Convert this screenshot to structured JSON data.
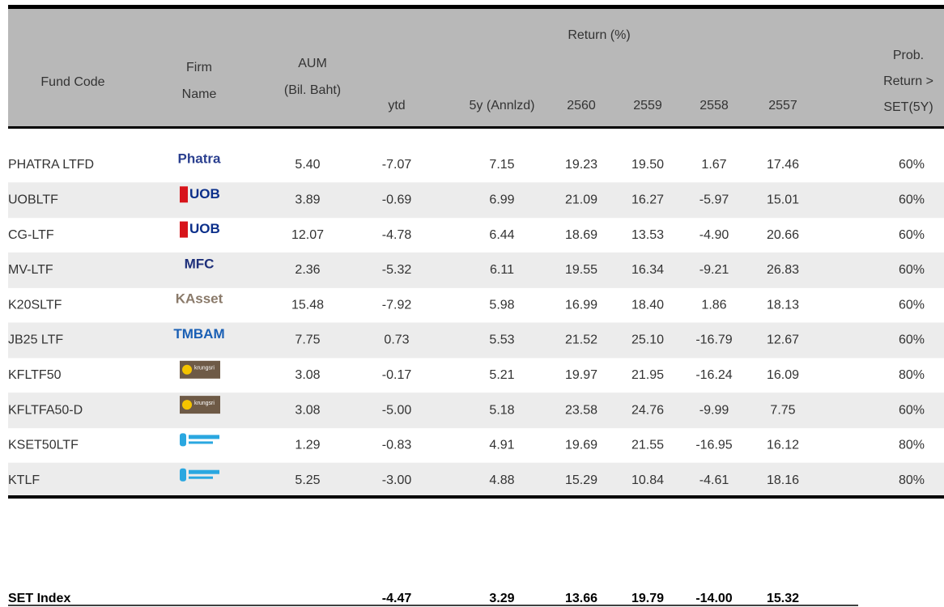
{
  "header": {
    "fund_code": "Fund Code",
    "firm": [
      "Firm",
      "Name"
    ],
    "aum": [
      "AUM",
      "(Bil. Baht)"
    ],
    "return_group": "Return (%)",
    "return_cols": [
      "ytd",
      "5y (Annlzd)",
      "2560",
      "2559",
      "2558",
      "2557"
    ],
    "prob": [
      "Prob.",
      "Return >",
      "SET(5Y)"
    ]
  },
  "rows": [
    {
      "code": "PHATRA LTFD",
      "firm": "Phatra",
      "firm_color": "#2a3f8f",
      "cells": [
        "5.40",
        "-7.07",
        "7.15",
        "19.23",
        "19.50",
        "1.67",
        "17.46"
      ],
      "prob": "60%"
    },
    {
      "code": "UOBLTF",
      "firm": "UOB",
      "firm_color": "#0b2f8a",
      "firm_mark": "#d7141a",
      "cells": [
        "3.89",
        "-0.69",
        "6.99",
        "21.09",
        "16.27",
        "-5.97",
        "15.01"
      ],
      "prob": "60%"
    },
    {
      "code": "CG-LTF",
      "firm": "UOB",
      "firm_color": "#0b2f8a",
      "firm_mark": "#d7141a",
      "cells": [
        "12.07",
        "-4.78",
        "6.44",
        "18.69",
        "13.53",
        "-4.90",
        "20.66"
      ],
      "prob": "60%"
    },
    {
      "code": "MV-LTF",
      "firm": "MFC",
      "firm_color": "#1d2f7a",
      "cells": [
        "2.36",
        "-5.32",
        "6.11",
        "19.55",
        "16.34",
        "-9.21",
        "26.83"
      ],
      "prob": "60%"
    },
    {
      "code": "K20SLTF",
      "firm": "KAsset",
      "firm_color": "#8a7a6a",
      "cells": [
        "15.48",
        "-7.92",
        "5.98",
        "16.99",
        "18.40",
        "1.86",
        "18.13"
      ],
      "prob": "60%"
    },
    {
      "code": "JB25 LTF",
      "firm": "TMBAM",
      "firm_color": "#1a5fb4",
      "cells": [
        "7.75",
        "0.73",
        "5.53",
        "21.52",
        "25.10",
        "-16.79",
        "12.67"
      ],
      "prob": "60%"
    },
    {
      "code": "KFLTF50",
      "firm": "krungsri",
      "firm_color": "#ffffff",
      "firm_bg": "#6e5a46",
      "cells": [
        "3.08",
        "-0.17",
        "5.21",
        "19.97",
        "21.95",
        "-16.24",
        "16.09"
      ],
      "prob": "80%"
    },
    {
      "code": "KFLTFA50-D",
      "firm": "krungsri",
      "firm_color": "#ffffff",
      "firm_bg": "#6e5a46",
      "cells": [
        "3.08",
        "-5.00",
        "5.18",
        "23.58",
        "24.76",
        "-9.99",
        "7.75"
      ],
      "prob": "60%"
    },
    {
      "code": "KSET50LTF",
      "firm_color": "#2aa7e0",
      "cells": [
        "1.29",
        "-0.83",
        "4.91",
        "19.69",
        "21.55",
        "-16.95",
        "16.12"
      ],
      "prob": "80%"
    },
    {
      "code": "KTLF",
      "firm_color": "#2aa7e0",
      "cells": [
        "5.25",
        "-3.00",
        "4.88",
        "15.29",
        "10.84",
        "-4.61",
        "18.16"
      ],
      "prob": "80%"
    }
  ],
  "footer": {
    "label": "SET Index",
    "cells": [
      "-4.47",
      "3.29",
      "13.66",
      "19.79",
      "-14.00",
      "15.32"
    ]
  }
}
